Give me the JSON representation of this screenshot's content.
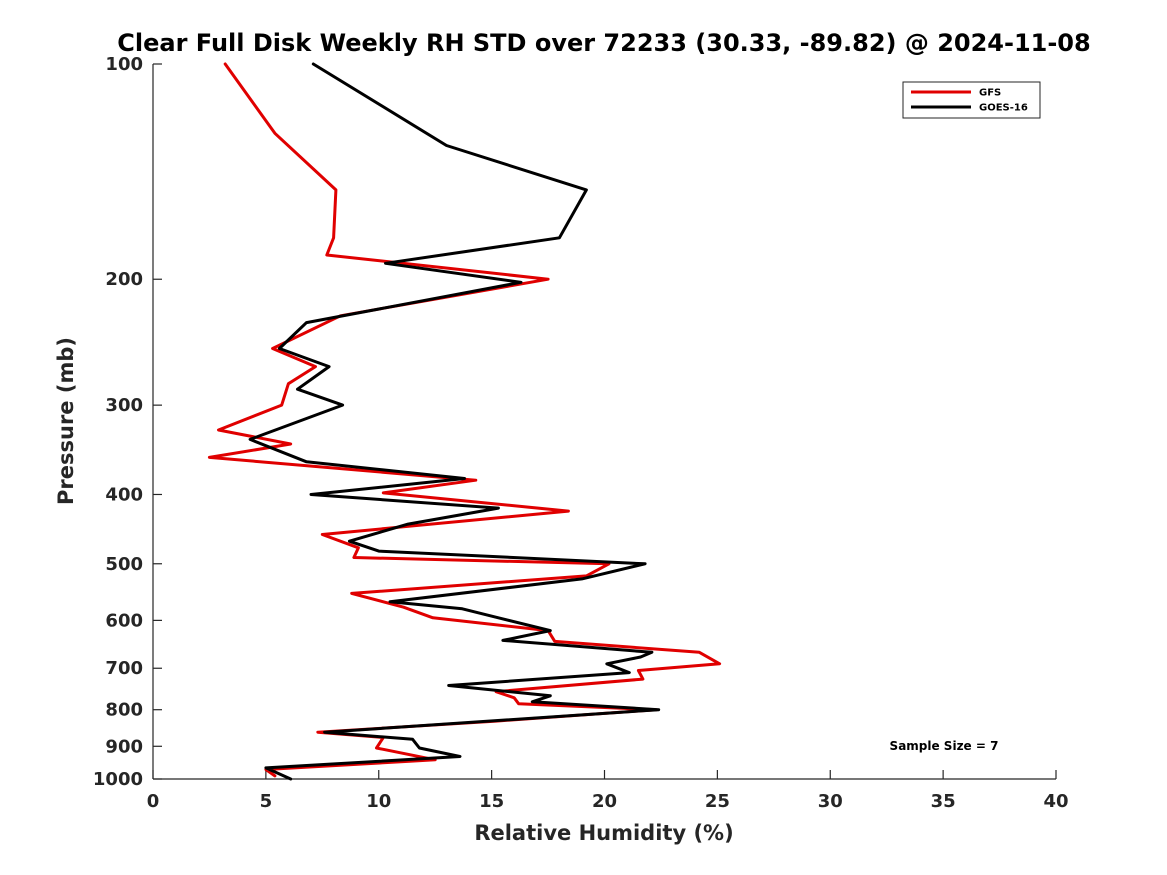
{
  "chart_data": {
    "type": "line",
    "title": "Clear Full Disk Weekly RH STD over 72233 (30.33, -89.82) @ 2024-11-08",
    "xlabel": "Relative Humidity (%)",
    "ylabel": "Pressure (mb)",
    "xlim": [
      0,
      40
    ],
    "ylim": [
      100,
      1000
    ],
    "y_scale": "log",
    "y_reversed": true,
    "x_ticks": [
      0,
      5,
      10,
      15,
      20,
      25,
      30,
      35,
      40
    ],
    "y_ticks": [
      100,
      200,
      300,
      400,
      500,
      600,
      700,
      800,
      900,
      1000
    ],
    "grid": false,
    "legend_position": "top-right",
    "annotation": "Sample Size = 7",
    "series": [
      {
        "name": "GFS",
        "color": "#e00000",
        "points": [
          [
            3.2,
            100
          ],
          [
            5.4,
            125
          ],
          [
            8.1,
            150
          ],
          [
            8.0,
            175
          ],
          [
            7.7,
            185
          ],
          [
            17.5,
            200
          ],
          [
            8.3,
            225
          ],
          [
            5.3,
            250
          ],
          [
            7.2,
            265
          ],
          [
            6.0,
            280
          ],
          [
            5.7,
            300
          ],
          [
            2.9,
            325
          ],
          [
            6.1,
            340
          ],
          [
            2.5,
            355
          ],
          [
            14.3,
            382
          ],
          [
            10.2,
            398
          ],
          [
            18.4,
            422
          ],
          [
            7.5,
            455
          ],
          [
            9.1,
            475
          ],
          [
            8.9,
            490
          ],
          [
            20.2,
            500
          ],
          [
            19.2,
            520
          ],
          [
            8.8,
            550
          ],
          [
            11.1,
            575
          ],
          [
            12.4,
            595
          ],
          [
            17.5,
            620
          ],
          [
            17.8,
            642
          ],
          [
            24.2,
            665
          ],
          [
            25.1,
            690
          ],
          [
            21.5,
            705
          ],
          [
            21.7,
            725
          ],
          [
            15.2,
            755
          ],
          [
            16.0,
            770
          ],
          [
            16.2,
            785
          ],
          [
            22.3,
            800
          ],
          [
            15.2,
            830
          ],
          [
            7.3,
            860
          ],
          [
            10.2,
            875
          ],
          [
            9.9,
            905
          ],
          [
            12.5,
            940
          ],
          [
            5.0,
            970
          ],
          [
            5.4,
            990
          ]
        ]
      },
      {
        "name": "GOES-16",
        "color": "#000000",
        "points": [
          [
            7.1,
            100
          ],
          [
            13.0,
            130
          ],
          [
            19.2,
            150
          ],
          [
            18.0,
            175
          ],
          [
            10.3,
            190
          ],
          [
            16.3,
            202
          ],
          [
            6.8,
            230
          ],
          [
            5.6,
            250
          ],
          [
            7.8,
            265
          ],
          [
            6.4,
            285
          ],
          [
            8.4,
            300
          ],
          [
            4.3,
            335
          ],
          [
            6.8,
            360
          ],
          [
            13.8,
            380
          ],
          [
            7.0,
            400
          ],
          [
            15.3,
            418
          ],
          [
            11.3,
            440
          ],
          [
            8.7,
            465
          ],
          [
            10.0,
            480
          ],
          [
            21.8,
            500
          ],
          [
            19.0,
            525
          ],
          [
            10.5,
            565
          ],
          [
            13.7,
            578
          ],
          [
            15.3,
            595
          ],
          [
            17.6,
            620
          ],
          [
            15.5,
            640
          ],
          [
            22.1,
            665
          ],
          [
            21.6,
            675
          ],
          [
            20.1,
            690
          ],
          [
            21.1,
            710
          ],
          [
            13.1,
            740
          ],
          [
            17.6,
            765
          ],
          [
            16.8,
            780
          ],
          [
            22.4,
            800
          ],
          [
            7.6,
            860
          ],
          [
            11.5,
            880
          ],
          [
            11.8,
            905
          ],
          [
            13.6,
            930
          ],
          [
            5.0,
            965
          ],
          [
            6.1,
            1000
          ]
        ]
      }
    ]
  }
}
